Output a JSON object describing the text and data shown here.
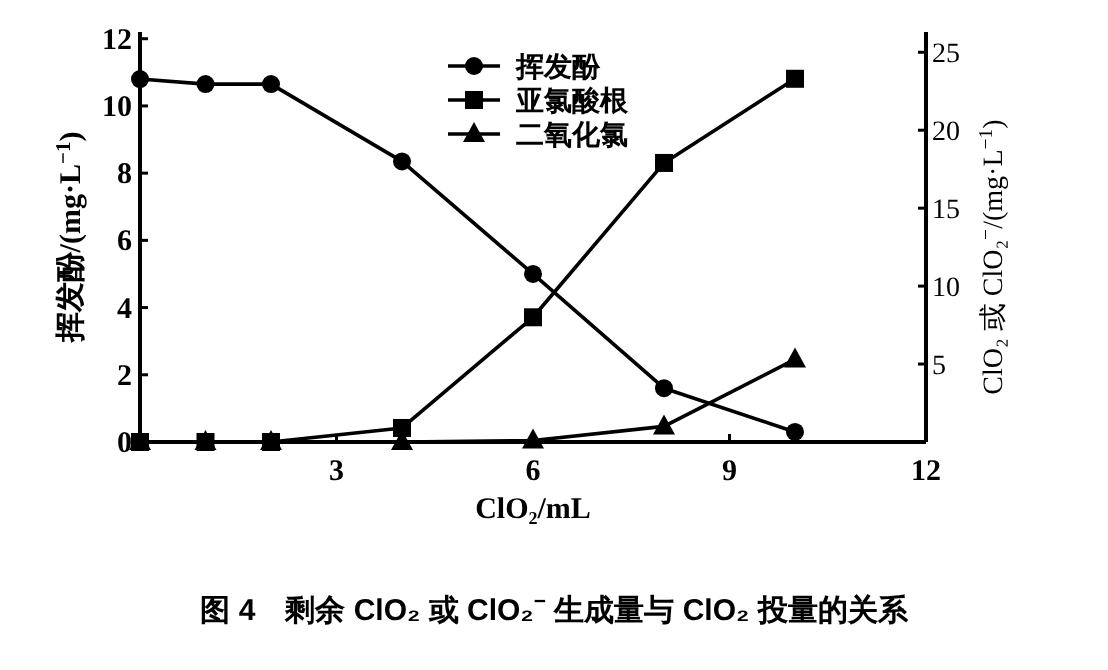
{
  "chart_data": {
    "type": "line",
    "xlabel": "ClO₂/mL",
    "ylabel": "挥发酚/(mg·L$^{−1}$)",
    "y2label": "ClO₂ 或 ClO₂$^{−}$/(mg·L$^{−1}$)",
    "x": [
      0,
      1,
      2,
      4,
      6,
      8,
      10
    ],
    "series": [
      {
        "name": "挥发酚",
        "color": "#000000",
        "marker": "circle",
        "values": [
          10.8,
          10.65,
          10.65,
          8.35,
          5.0,
          1.6,
          0.3
        ]
      },
      {
        "name": "亚氯酸根",
        "color": "#000000",
        "marker": "square",
        "axis": "y2",
        "values": [
          0,
          0,
          0,
          0.9,
          8.0,
          17.9,
          23.3
        ]
      },
      {
        "name": "二氧化氯",
        "color": "#000000",
        "marker": "triangle",
        "axis": "y2",
        "values": [
          0,
          0,
          0,
          0,
          0.1,
          1.0,
          5.3
        ]
      }
    ],
    "xlim": [
      0,
      12
    ],
    "xticks": [
      3,
      6,
      9,
      12
    ],
    "ylim": [
      0,
      12.2
    ],
    "yticks": [
      0,
      2,
      4,
      6,
      8,
      10,
      12
    ],
    "y2lim": [
      0,
      26.3
    ],
    "y2ticks": [
      5,
      10,
      15,
      20,
      25
    ],
    "legend": "top",
    "grid": false,
    "line_style": "solid",
    "annotations": [
      "图 4　剩余 ClO₂ 或 ClO₂$^{−}$ 生成量与 ClO₂ 投量的关系"
    ]
  }
}
